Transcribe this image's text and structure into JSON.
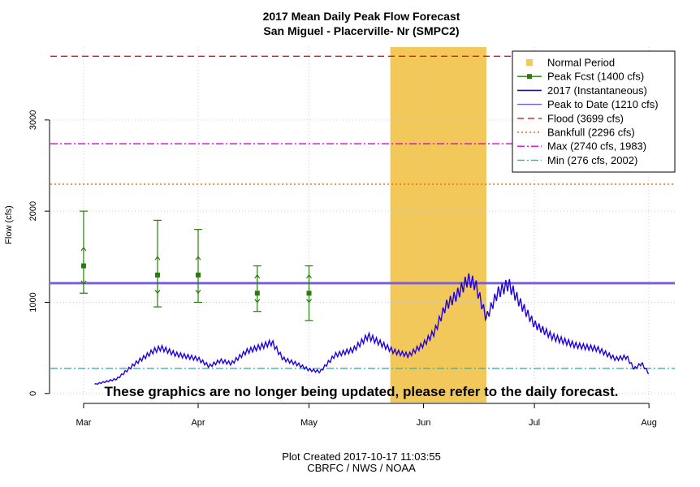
{
  "chart_data": {
    "type": "line",
    "title": "2017 Mean Daily Peak Flow Forecast",
    "subtitle": "San Miguel - Placerville- Nr (SMPC2)",
    "ylabel": "Flow (cfs)",
    "xlabel": "",
    "ylim": [
      -100,
      3800
    ],
    "y_ticks": [
      0,
      1000,
      2000,
      3000
    ],
    "x_ticks": [
      {
        "label": "Mar",
        "date": "2017-03-01"
      },
      {
        "label": "Apr",
        "date": "2017-04-01"
      },
      {
        "label": "May",
        "date": "2017-05-01"
      },
      {
        "label": "Jun",
        "date": "2017-06-01"
      },
      {
        "label": "Jul",
        "date": "2017-07-01"
      },
      {
        "label": "Aug",
        "date": "2017-08-01"
      }
    ],
    "xlim": [
      "2017-02-20",
      "2017-08-08"
    ],
    "grid": true,
    "legend_position": "top-right",
    "normal_period": {
      "label": "Normal Period",
      "start": "2017-05-23",
      "end": "2017-06-18",
      "color": "#f2c85a"
    },
    "forecasts": {
      "label": "Peak Fcst (1400 cfs)",
      "color": "#2a7a10",
      "points": [
        {
          "date": "2017-03-01",
          "value": 1400,
          "low": 1100,
          "high": 2000,
          "q_low": 1200,
          "q_high": 1600
        },
        {
          "date": "2017-03-21",
          "value": 1300,
          "low": 950,
          "high": 1900,
          "q_low": 1100,
          "q_high": 1500
        },
        {
          "date": "2017-04-01",
          "value": 1300,
          "low": 1000,
          "high": 1800,
          "q_low": 1100,
          "q_high": 1500
        },
        {
          "date": "2017-04-17",
          "value": 1100,
          "low": 900,
          "high": 1400,
          "q_low": 1000,
          "q_high": 1300
        },
        {
          "date": "2017-05-01",
          "value": 1100,
          "low": 800,
          "high": 1400,
          "q_low": 1000,
          "q_high": 1300
        }
      ]
    },
    "observed": {
      "label": "2017  (Instantaneous)",
      "color": "#2200dd",
      "anchors": [
        [
          "2017-03-04",
          100
        ],
        [
          "2017-03-10",
          160
        ],
        [
          "2017-03-15",
          330
        ],
        [
          "2017-03-20",
          470
        ],
        [
          "2017-03-22",
          500
        ],
        [
          "2017-03-26",
          430
        ],
        [
          "2017-04-01",
          380
        ],
        [
          "2017-04-04",
          300
        ],
        [
          "2017-04-07",
          360
        ],
        [
          "2017-04-10",
          330
        ],
        [
          "2017-04-14",
          460
        ],
        [
          "2017-04-19",
          530
        ],
        [
          "2017-04-21",
          560
        ],
        [
          "2017-04-24",
          380
        ],
        [
          "2017-04-28",
          320
        ],
        [
          "2017-05-01",
          260
        ],
        [
          "2017-05-04",
          240
        ],
        [
          "2017-05-08",
          420
        ],
        [
          "2017-05-13",
          480
        ],
        [
          "2017-05-17",
          630
        ],
        [
          "2017-05-20",
          560
        ],
        [
          "2017-05-24",
          460
        ],
        [
          "2017-05-28",
          420
        ],
        [
          "2017-06-01",
          540
        ],
        [
          "2017-06-04",
          680
        ],
        [
          "2017-06-07",
          960
        ],
        [
          "2017-06-10",
          1080
        ],
        [
          "2017-06-13",
          1250
        ],
        [
          "2017-06-15",
          1200
        ],
        [
          "2017-06-18",
          830
        ],
        [
          "2017-06-21",
          1100
        ],
        [
          "2017-06-24",
          1200
        ],
        [
          "2017-06-27",
          1000
        ],
        [
          "2017-07-01",
          760
        ],
        [
          "2017-07-06",
          620
        ],
        [
          "2017-07-12",
          530
        ],
        [
          "2017-07-18",
          490
        ],
        [
          "2017-07-23",
          380
        ],
        [
          "2017-07-26",
          400
        ],
        [
          "2017-07-28",
          270
        ],
        [
          "2017-07-30",
          330
        ],
        [
          "2017-08-01",
          220
        ]
      ]
    },
    "hlines": [
      {
        "label": "Peak to Date (1210 cfs)",
        "value": 1210,
        "color": "#7b5ce6",
        "style": "solid"
      },
      {
        "label": "Flood (3699 cfs)",
        "value": 3699,
        "color": "#ee1111",
        "style": "dashed"
      },
      {
        "label": "Bankfull (2296 cfs)",
        "value": 2296,
        "color": "#ee6600",
        "style": "dotted"
      },
      {
        "label": "Max (2740 cfs, 1983)",
        "value": 2740,
        "color": "#dd00dd",
        "style": "dashdot"
      },
      {
        "label": "Min (276 cfs, 2002)",
        "value": 276,
        "color": "#22bbbb",
        "style": "dashdot"
      }
    ],
    "annotation": "These graphics are no longer being updated, please refer to the daily forecast."
  },
  "footer": {
    "created": "Plot Created 2017-10-17 11:03:55",
    "credit": "CBRFC / NWS / NOAA"
  }
}
